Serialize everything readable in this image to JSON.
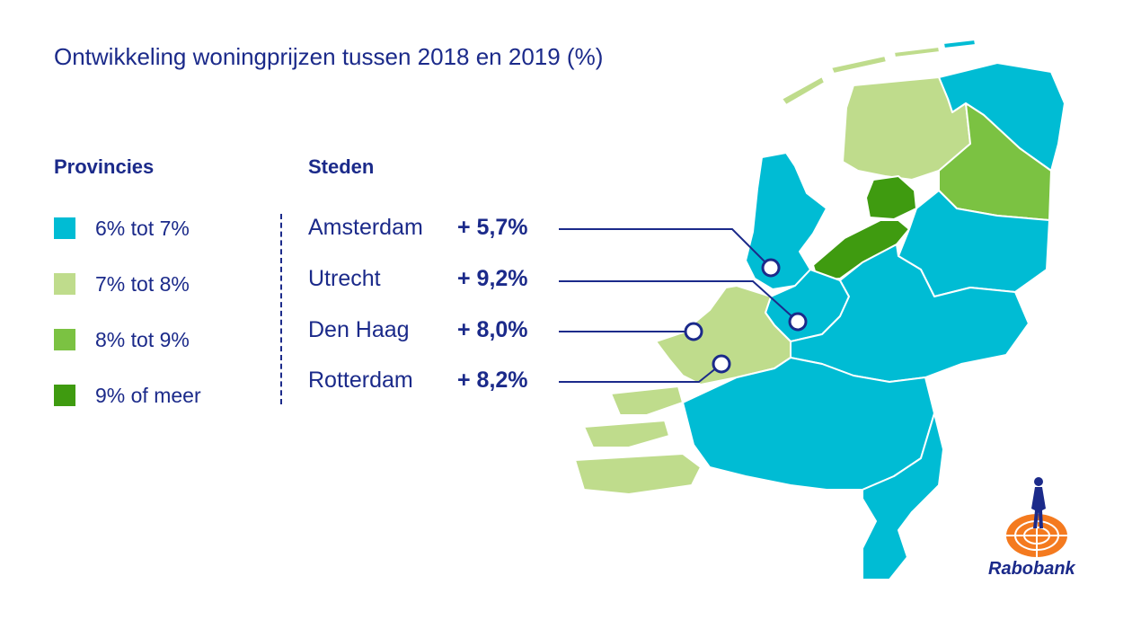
{
  "title": "Ontwikkeling woningprijzen tussen 2018 en 2019 (%)",
  "legend": {
    "heading": "Provincies",
    "items": [
      {
        "label": "6% tot 7%",
        "color": "#00bcd4"
      },
      {
        "label": "7% tot 8%",
        "color": "#bfdc8c"
      },
      {
        "label": "8% tot 9%",
        "color": "#7bc242"
      },
      {
        "label": "9% of meer",
        "color": "#3f9b10"
      }
    ]
  },
  "cities": {
    "heading": "Steden",
    "items": [
      {
        "name": "Amsterdam",
        "value": "+ 5,7%"
      },
      {
        "name": "Utrecht",
        "value": "+ 9,2%"
      },
      {
        "name": "Den Haag",
        "value": "+ 8,0%"
      },
      {
        "name": "Rotterdam",
        "value": "+ 8,2%"
      }
    ]
  },
  "map": {
    "provinces": [
      {
        "name": "Groningen",
        "class": "6% tot 7%"
      },
      {
        "name": "Friesland",
        "class": "7% tot 8%"
      },
      {
        "name": "Drenthe",
        "class": "8% tot 9%"
      },
      {
        "name": "Noord-Holland",
        "class": "6% tot 7%"
      },
      {
        "name": "Flevoland",
        "class": "9% of meer"
      },
      {
        "name": "Overijssel",
        "class": "6% tot 7%"
      },
      {
        "name": "Gelderland",
        "class": "6% tot 7%"
      },
      {
        "name": "Utrecht",
        "class": "6% tot 7%"
      },
      {
        "name": "Zuid-Holland",
        "class": "7% tot 8%"
      },
      {
        "name": "Zeeland",
        "class": "7% tot 8%"
      },
      {
        "name": "Noord-Brabant",
        "class": "6% tot 7%"
      },
      {
        "name": "Limburg",
        "class": "6% tot 7%"
      }
    ]
  },
  "brand": {
    "name": "Rabobank"
  }
}
